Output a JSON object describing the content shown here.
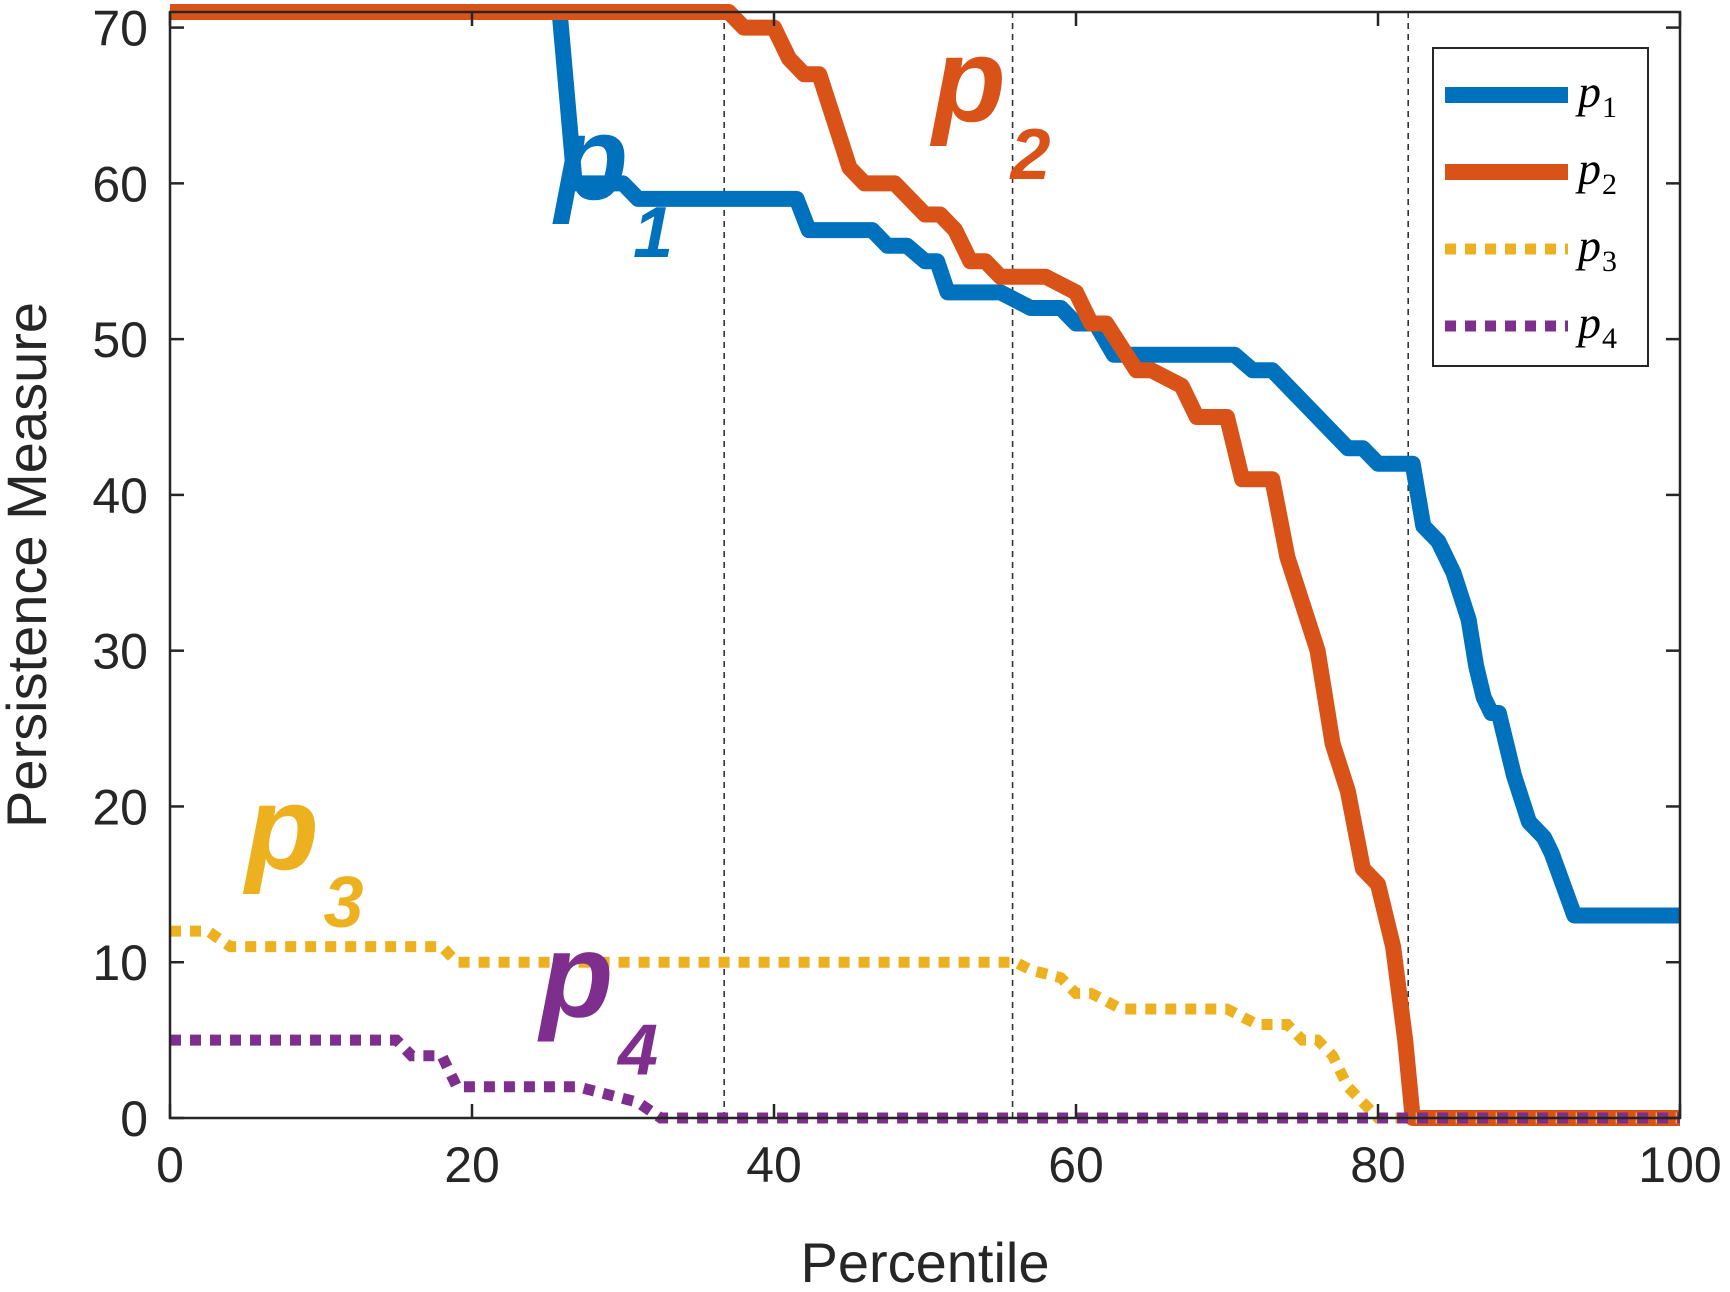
{
  "chart_data": {
    "type": "line",
    "title": "",
    "xlabel": "Percentile",
    "ylabel": "Persistence Measure",
    "xlim": [
      0,
      100
    ],
    "ylim": [
      0,
      71
    ],
    "xticks": [
      0,
      20,
      40,
      60,
      80,
      100
    ],
    "yticks": [
      0,
      10,
      20,
      30,
      40,
      50,
      60,
      70
    ],
    "xtick_labels": [
      "0",
      "20",
      "40",
      "60",
      "80",
      "100"
    ],
    "ytick_labels": [
      "0",
      "10",
      "20",
      "30",
      "40",
      "50",
      "60",
      "70"
    ],
    "grid": false,
    "legend_position": "top-right",
    "vertical_reference_lines": [
      36.7,
      55.8,
      82.0
    ],
    "series": [
      {
        "name": "p1",
        "legend_base": "p",
        "legend_sub": "1",
        "color": "#0072BD",
        "style": "solid",
        "x": [
          0,
          25.8,
          26.8,
          30,
          31,
          41.5,
          42.3,
          46.5,
          47.5,
          48.8,
          50,
          50.8,
          51.5,
          55,
          57,
          59,
          60,
          61.3,
          62.5,
          70.5,
          71.7,
          73,
          75,
          78,
          79,
          80,
          81.3,
          82.3,
          83,
          84,
          85,
          86,
          86.5,
          87,
          87.5,
          88,
          89,
          90,
          91,
          91.5,
          93,
          100
        ],
        "y": [
          71,
          71,
          60,
          60,
          59,
          59,
          57,
          57,
          56,
          56,
          55,
          55,
          53,
          53,
          52,
          52,
          51,
          51,
          49,
          49,
          48,
          48,
          46,
          43,
          43,
          42,
          42,
          42,
          38,
          37,
          35,
          32,
          29,
          27,
          26,
          26,
          22,
          19,
          18,
          17,
          13,
          13
        ]
      },
      {
        "name": "p2",
        "legend_base": "p",
        "legend_sub": "2",
        "color": "#D95319",
        "style": "solid",
        "x": [
          0,
          37,
          38,
          40,
          41,
          42,
          43,
          45,
          46,
          48,
          50,
          51,
          52,
          53,
          54,
          55,
          56,
          58,
          60,
          61,
          62,
          64,
          65,
          67,
          68,
          70,
          71,
          73,
          74,
          75,
          76,
          77,
          78,
          79,
          80,
          81,
          81.8,
          82.3,
          83,
          100
        ],
        "y": [
          71,
          71,
          70,
          70,
          68,
          67,
          67,
          61,
          60,
          60,
          58,
          58,
          57,
          55,
          55,
          54,
          54,
          54,
          53,
          51,
          51,
          48,
          48,
          47,
          45,
          45,
          41,
          41,
          36,
          33,
          30,
          24,
          21,
          16,
          15,
          11,
          5,
          0,
          0,
          0
        ]
      },
      {
        "name": "p3",
        "legend_base": "p",
        "legend_sub": "3",
        "color": "#EDB120",
        "style": "dotted",
        "x": [
          0,
          2.5,
          4,
          18,
          19,
          56,
          57,
          59,
          60,
          61,
          62,
          63,
          64,
          65,
          66,
          67,
          70,
          71,
          72,
          73,
          74,
          75,
          76,
          77,
          78,
          79,
          80,
          100
        ],
        "y": [
          12,
          12,
          11,
          11,
          10,
          10,
          9.5,
          9,
          8,
          8,
          7.5,
          7,
          7,
          7,
          7,
          7,
          7,
          6.5,
          6,
          6,
          6,
          5,
          5,
          4,
          2,
          1,
          0,
          0
        ]
      },
      {
        "name": "p4",
        "legend_base": "p",
        "legend_sub": "4",
        "color": "#7E2F8E",
        "style": "dotted",
        "x": [
          0,
          15,
          16,
          18,
          19,
          27,
          29,
          31,
          32.5,
          100
        ],
        "y": [
          5,
          5,
          4,
          4,
          2,
          2,
          1.5,
          1,
          0,
          0
        ]
      }
    ],
    "annotations": [
      {
        "base": "p",
        "sub": "1",
        "color": "#0072BD",
        "x": 25.5,
        "y": 59
      },
      {
        "base": "p",
        "sub": "2",
        "color": "#D95319",
        "x": 50.5,
        "y": 64
      },
      {
        "base": "p",
        "sub": "3",
        "color": "#EDB120",
        "x": 5,
        "y": 16
      },
      {
        "base": "p",
        "sub": "4",
        "color": "#7E2F8E",
        "x": 24.5,
        "y": 6.5
      }
    ]
  }
}
